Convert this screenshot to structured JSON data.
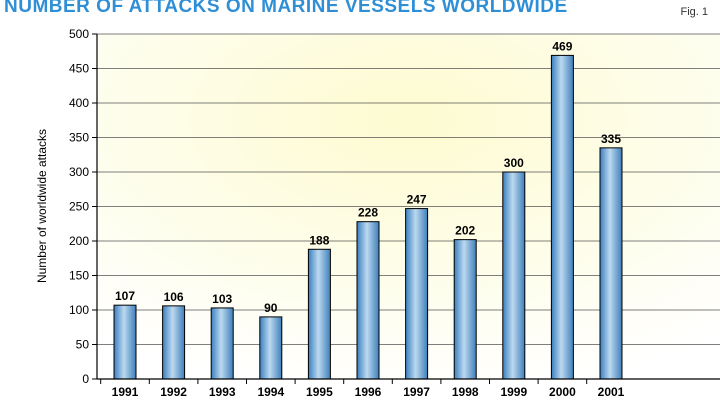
{
  "header": {
    "title": "NUMBER OF ATTACKS ON MARINE VESSELS WORLDWIDE",
    "fig_label": "Fig. 1"
  },
  "colors": {
    "title": "#2f8fd6",
    "bar": "#4f8fc6",
    "bar_highlight": "#bcd9f0",
    "plot_background": "#fcfae0"
  },
  "chart_data": {
    "type": "bar",
    "title": "NUMBER OF ATTACKS ON MARINE VESSELS WORLDWIDE",
    "xlabel": "",
    "ylabel": "Number of worldwide attacks",
    "categories": [
      "1991",
      "1992",
      "1993",
      "1994",
      "1995",
      "1996",
      "1997",
      "1998",
      "1999",
      "2000",
      "2001"
    ],
    "values": [
      107,
      106,
      103,
      90,
      188,
      228,
      247,
      202,
      300,
      469,
      335
    ],
    "data_labels": [
      "107",
      "106",
      "103",
      "90",
      "188",
      "228",
      "247",
      "202",
      "300",
      "469",
      "335"
    ],
    "ylim": [
      0,
      500
    ],
    "yticks": [
      0,
      50,
      100,
      150,
      200,
      250,
      300,
      350,
      400,
      450,
      500
    ],
    "ytick_labels": [
      "0",
      "50",
      "100",
      "150",
      "200",
      "250",
      "300",
      "350",
      "400",
      "450",
      "500"
    ],
    "grid": true,
    "legend": "none"
  }
}
